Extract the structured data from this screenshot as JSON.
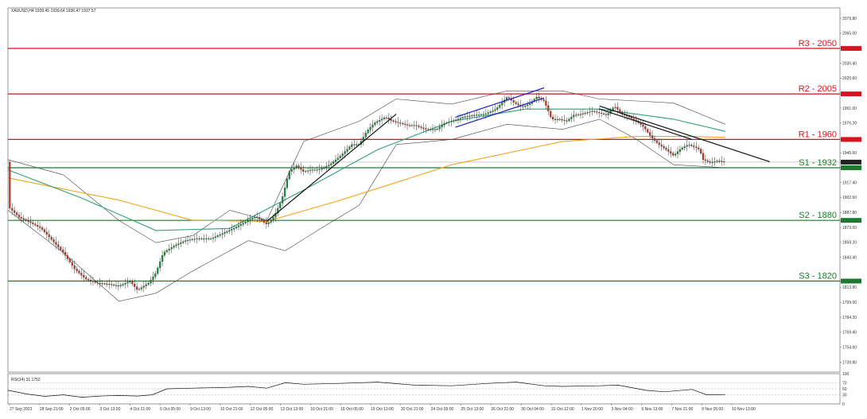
{
  "chart_data": {
    "type": "candlestick",
    "symbol_header": "XAUUSD,H4  1939.45 1939.64 1936.47 1937.57",
    "rsi_header": "RSI(14) 31.1752",
    "price_axis": {
      "ylim": [
        1730.0,
        2090.0
      ],
      "tick_labels": [
        {
          "value": 2079.8,
          "text": "2079.80"
        },
        {
          "value": 2065.0,
          "text": "2065.00"
        },
        {
          "value": 2050.0,
          "text": "2050.00"
        },
        {
          "value": 2035.4,
          "text": "2035.40"
        },
        {
          "value": 2020.6,
          "text": "2020.60"
        },
        {
          "value": 2005.0,
          "text": "2005.00"
        },
        {
          "value": 1991.0,
          "text": "1991.00"
        },
        {
          "value": 1976.2,
          "text": "1976.20"
        },
        {
          "value": 1960.0,
          "text": "1960.00"
        },
        {
          "value": 1946.6,
          "text": "1946.60"
        },
        {
          "value": 1937.57,
          "text": "1937.57"
        },
        {
          "value": 1932.0,
          "text": "1932.00"
        },
        {
          "value": 1917.4,
          "text": "1917.40"
        },
        {
          "value": 1902.6,
          "text": "1902.60"
        },
        {
          "value": 1887.8,
          "text": "1887.80"
        },
        {
          "value": 1880.0,
          "text": "1880.00"
        },
        {
          "value": 1873.0,
          "text": "1873.00"
        },
        {
          "value": 1858.2,
          "text": "1858.20"
        },
        {
          "value": 1843.4,
          "text": "1843.40"
        },
        {
          "value": 1820.0,
          "text": "1820.00"
        },
        {
          "value": 1813.8,
          "text": "1813.80"
        },
        {
          "value": 1799.0,
          "text": "1799.00"
        },
        {
          "value": 1784.2,
          "text": "1784.20"
        },
        {
          "value": 1769.4,
          "text": "1769.40"
        },
        {
          "value": 1754.6,
          "text": "1754.60"
        },
        {
          "value": 1739.8,
          "text": "1739.80"
        }
      ]
    },
    "rsi_axis": {
      "ylim": [
        0,
        100
      ],
      "tick_labels": [
        {
          "value": 100,
          "text": "100"
        },
        {
          "value": 70,
          "text": "70"
        },
        {
          "value": 50,
          "text": "50"
        },
        {
          "value": 30,
          "text": "30"
        },
        {
          "value": 0,
          "text": "0"
        }
      ]
    },
    "x_labels": [
      "27 Sep 2023",
      "28 Sep 21:00",
      "2 Oct 05:00",
      "3 Oct 13:00",
      "4 Oct 21:00",
      "6 Oct 05:00",
      "9 Oct 13:00",
      "10 Oct 21:00",
      "12 Oct 05:00",
      "13 Oct 13:00",
      "16 Oct 21:00",
      "18 Oct 05:00",
      "19 Oct 13:00",
      "20 Oct 21:00",
      "24 Oct 05:00",
      "25 Oct 13:00",
      "26 Oct 21:00",
      "30 Oct 04:00",
      "31 Oct 12:00",
      "1 Nov 20:00",
      "3 Nov 04:00",
      "6 Nov 13:00",
      "7 Nov 21:00",
      "9 Nov 05:00",
      "10 Nov 13:00"
    ],
    "levels": [
      {
        "label": "R3 - 2050",
        "value": 2050.0,
        "color": "#d4141e"
      },
      {
        "label": "R2 - 2005",
        "value": 2005.0,
        "color": "#d4141e"
      },
      {
        "label": "R1 - 1960",
        "value": 1960.0,
        "color": "#d4141e"
      },
      {
        "label": "S1 - 1932",
        "value": 1932.0,
        "color": "#1c7a2e"
      },
      {
        "label": "S2 - 1880",
        "value": 1880.0,
        "color": "#1c7a2e"
      },
      {
        "label": "S3 - 1820",
        "value": 1820.0,
        "color": "#1c7a2e"
      }
    ],
    "current_price": 1937.57,
    "price_path": [
      [
        0,
        1894
      ],
      [
        6,
        1883
      ],
      [
        12,
        1878
      ],
      [
        18,
        1872
      ],
      [
        24,
        1860
      ],
      [
        30,
        1848
      ],
      [
        36,
        1832
      ],
      [
        42,
        1822
      ],
      [
        48,
        1818
      ],
      [
        54,
        1817
      ],
      [
        60,
        1815
      ],
      [
        66,
        1820
      ],
      [
        70,
        1811
      ],
      [
        76,
        1818
      ],
      [
        80,
        1828
      ],
      [
        84,
        1848
      ],
      [
        90,
        1855
      ],
      [
        96,
        1860
      ],
      [
        102,
        1862
      ],
      [
        110,
        1862
      ],
      [
        116,
        1867
      ],
      [
        122,
        1872
      ],
      [
        128,
        1878
      ],
      [
        134,
        1884
      ],
      [
        140,
        1876
      ],
      [
        144,
        1884
      ],
      [
        148,
        1900
      ],
      [
        152,
        1928
      ],
      [
        156,
        1934
      ],
      [
        160,
        1928
      ],
      [
        164,
        1930
      ],
      [
        168,
        1930
      ],
      [
        174,
        1935
      ],
      [
        180,
        1944
      ],
      [
        186,
        1955
      ],
      [
        190,
        1955
      ],
      [
        194,
        1968
      ],
      [
        198,
        1976
      ],
      [
        204,
        1982
      ],
      [
        208,
        1978
      ],
      [
        212,
        1976
      ],
      [
        216,
        1974
      ],
      [
        220,
        1974
      ],
      [
        226,
        1970
      ],
      [
        232,
        1970
      ],
      [
        236,
        1976
      ],
      [
        240,
        1978
      ],
      [
        246,
        1982
      ],
      [
        252,
        1984
      ],
      [
        258,
        1985
      ],
      [
        264,
        1990
      ],
      [
        270,
        2002
      ],
      [
        274,
        1996
      ],
      [
        278,
        1992
      ],
      [
        282,
        1995
      ],
      [
        286,
        2002
      ],
      [
        290,
        1998
      ],
      [
        294,
        1980
      ],
      [
        298,
        1980
      ],
      [
        302,
        1978
      ],
      [
        306,
        1984
      ],
      [
        310,
        1985
      ],
      [
        316,
        1988
      ],
      [
        320,
        1986
      ],
      [
        324,
        1984
      ],
      [
        328,
        1993
      ],
      [
        332,
        1985
      ],
      [
        336,
        1982
      ],
      [
        340,
        1978
      ],
      [
        344,
        1972
      ],
      [
        348,
        1962
      ],
      [
        352,
        1955
      ],
      [
        356,
        1950
      ],
      [
        360,
        1944
      ],
      [
        364,
        1951
      ],
      [
        368,
        1955
      ],
      [
        372,
        1952
      ],
      [
        374,
        1950
      ],
      [
        376,
        1940
      ],
      [
        380,
        1937
      ],
      [
        384,
        1939
      ],
      [
        388,
        1937.57
      ]
    ],
    "rsi_path": [
      [
        0,
        45
      ],
      [
        10,
        33
      ],
      [
        20,
        25
      ],
      [
        30,
        30
      ],
      [
        40,
        22
      ],
      [
        50,
        26
      ],
      [
        60,
        28
      ],
      [
        70,
        26
      ],
      [
        78,
        30
      ],
      [
        86,
        50
      ],
      [
        100,
        52
      ],
      [
        120,
        55
      ],
      [
        130,
        58
      ],
      [
        140,
        52
      ],
      [
        150,
        70
      ],
      [
        160,
        65
      ],
      [
        180,
        68
      ],
      [
        200,
        72
      ],
      [
        220,
        62
      ],
      [
        240,
        60
      ],
      [
        260,
        68
      ],
      [
        275,
        72
      ],
      [
        290,
        60
      ],
      [
        300,
        58
      ],
      [
        320,
        60
      ],
      [
        330,
        62
      ],
      [
        345,
        45
      ],
      [
        355,
        40
      ],
      [
        370,
        48
      ],
      [
        378,
        30
      ],
      [
        388,
        31.1752
      ]
    ],
    "trend_lines": [
      {
        "color": "#111111",
        "points": [
          [
            140,
            1879
          ],
          [
            210,
            1985
          ]
        ]
      },
      {
        "color": "#1a1ad0",
        "points": [
          [
            242,
            1982
          ],
          [
            290,
            2011
          ]
        ]
      },
      {
        "color": "#1a1ad0",
        "points": [
          [
            242,
            1972
          ],
          [
            290,
            2001
          ]
        ]
      },
      {
        "color": "#111111",
        "points": [
          [
            320,
            1993
          ],
          [
            412,
            1938
          ]
        ]
      },
      {
        "color": "#111111",
        "points": [
          [
            320,
            1990
          ],
          [
            370,
            1960
          ]
        ]
      }
    ],
    "moving_averages": [
      {
        "color": "#f5a623",
        "points": [
          [
            0,
            1922
          ],
          [
            60,
            1900
          ],
          [
            100,
            1880
          ],
          [
            140,
            1879
          ],
          [
            180,
            1900
          ],
          [
            240,
            1935
          ],
          [
            300,
            1958
          ],
          [
            340,
            1963
          ],
          [
            370,
            1963
          ],
          [
            388,
            1962
          ]
        ]
      },
      {
        "color": "#2fa07a",
        "points": [
          [
            0,
            1930
          ],
          [
            40,
            1902
          ],
          [
            80,
            1870
          ],
          [
            120,
            1872
          ],
          [
            160,
            1910
          ],
          [
            200,
            1950
          ],
          [
            240,
            1978
          ],
          [
            280,
            1990
          ],
          [
            320,
            1990
          ],
          [
            360,
            1980
          ],
          [
            388,
            1968
          ]
        ]
      }
    ],
    "bollinger": [
      {
        "color": "#444444",
        "points": [
          [
            0,
            1940
          ],
          [
            30,
            1925
          ],
          [
            60,
            1880
          ],
          [
            80,
            1858
          ],
          [
            100,
            1865
          ],
          [
            120,
            1890
          ],
          [
            140,
            1880
          ],
          [
            160,
            1958
          ],
          [
            190,
            1978
          ],
          [
            210,
            2000
          ],
          [
            240,
            1995
          ],
          [
            270,
            2008
          ],
          [
            300,
            2008
          ],
          [
            320,
            2000
          ],
          [
            340,
            1998
          ],
          [
            360,
            1996
          ],
          [
            388,
            1975
          ]
        ]
      },
      {
        "color": "#444444",
        "points": [
          [
            0,
            1890
          ],
          [
            30,
            1848
          ],
          [
            60,
            1800
          ],
          [
            80,
            1808
          ],
          [
            100,
            1830
          ],
          [
            130,
            1860
          ],
          [
            150,
            1850
          ],
          [
            170,
            1873
          ],
          [
            190,
            1895
          ],
          [
            210,
            1955
          ],
          [
            240,
            1960
          ],
          [
            270,
            1975
          ],
          [
            300,
            1970
          ],
          [
            320,
            1980
          ],
          [
            340,
            1960
          ],
          [
            360,
            1935
          ],
          [
            388,
            1932
          ]
        ]
      }
    ]
  }
}
